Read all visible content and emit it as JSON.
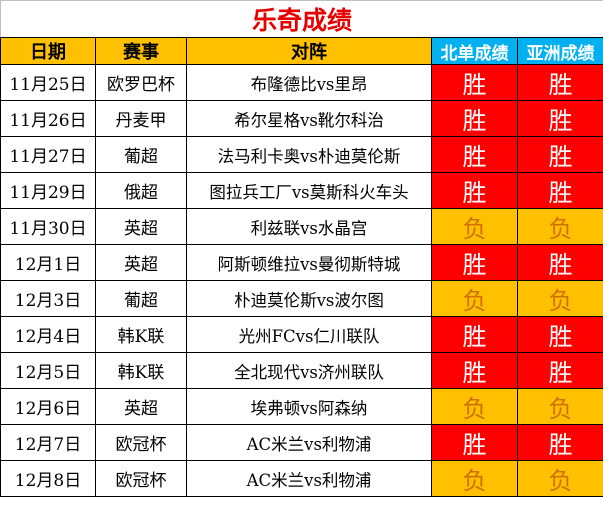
{
  "title": "乐奇成绩",
  "headers": {
    "date": "日期",
    "league": "赛事",
    "match": "对阵",
    "beidan": "北单成绩",
    "asian": "亚洲成绩"
  },
  "colors": {
    "title": "#e60000",
    "header": "#ffc000",
    "result_header": "#00b0f0",
    "win": "#ff0000",
    "lose": "#ffc000"
  },
  "rows": [
    {
      "date": "11月25日",
      "league": "欧罗巴杯",
      "match": "布隆德比vs里昂",
      "beidan": "胜",
      "asian": "胜"
    },
    {
      "date": "11月26日",
      "league": "丹麦甲",
      "match": "希尔星格vs靴尔科治",
      "beidan": "胜",
      "asian": "胜"
    },
    {
      "date": "11月27日",
      "league": "葡超",
      "match": "法马利卡奥vs朴迪莫伦斯",
      "beidan": "胜",
      "asian": "胜"
    },
    {
      "date": "11月29日",
      "league": "俄超",
      "match": "图拉兵工厂vs莫斯科火车头",
      "beidan": "胜",
      "asian": "胜"
    },
    {
      "date": "11月30日",
      "league": "英超",
      "match": "利兹联vs水晶宫",
      "beidan": "负",
      "asian": "负"
    },
    {
      "date": "12月1日",
      "league": "英超",
      "match": "阿斯顿维拉vs曼彻斯特城",
      "beidan": "胜",
      "asian": "胜"
    },
    {
      "date": "12月3日",
      "league": "葡超",
      "match": "朴迪莫伦斯vs波尔图",
      "beidan": "负",
      "asian": "负"
    },
    {
      "date": "12月4日",
      "league": "韩K联",
      "match": "光州FCvs仁川联队",
      "beidan": "胜",
      "asian": "胜"
    },
    {
      "date": "12月5日",
      "league": "韩K联",
      "match": "全北现代vs济州联队",
      "beidan": "胜",
      "asian": "胜"
    },
    {
      "date": "12月6日",
      "league": "英超",
      "match": "埃弗顿vs阿森纳",
      "beidan": "负",
      "asian": "负"
    },
    {
      "date": "12月7日",
      "league": "欧冠杯",
      "match": "AC米兰vs利物浦",
      "beidan": "胜",
      "asian": "胜"
    },
    {
      "date": "12月8日",
      "league": "欧冠杯",
      "match": "AC米兰vs利物浦",
      "beidan": "负",
      "asian": "负"
    }
  ]
}
